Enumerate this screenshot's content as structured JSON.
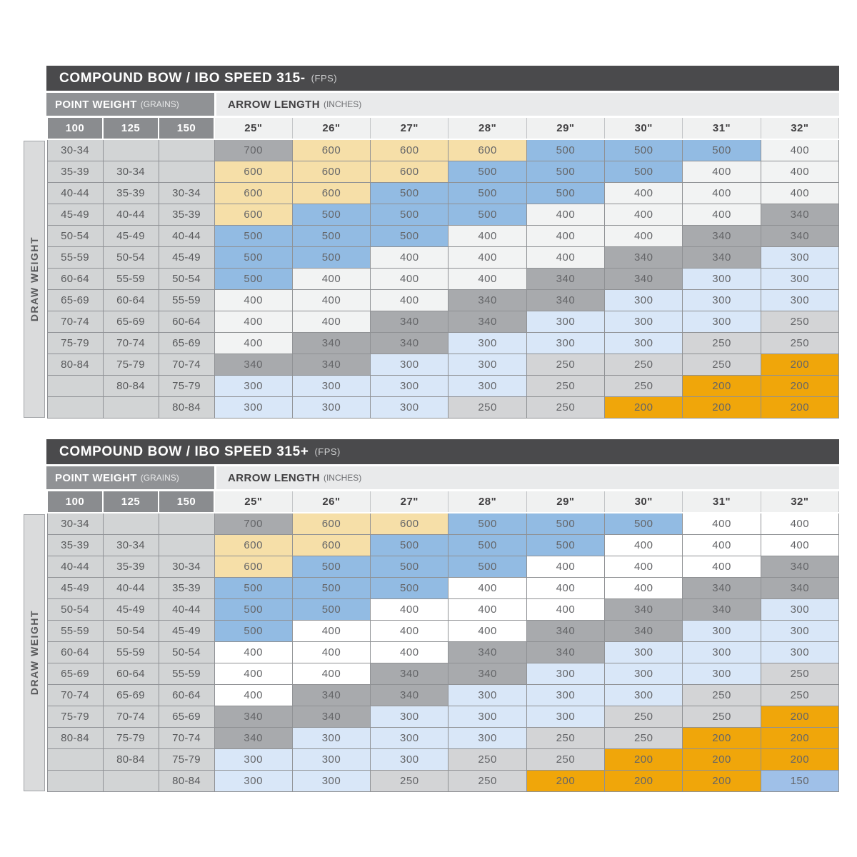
{
  "page_background": "#ffffff",
  "chart_data": [
    {
      "type": "table",
      "title": "COMPOUND BOW / IBO SPEED 315-",
      "units": "(FPS)",
      "col_group_left": {
        "label": "POINT WEIGHT",
        "unit": "(GRAINS)"
      },
      "col_group_right": {
        "label": "ARROW LENGTH",
        "unit": "(INCHES)"
      },
      "row_axis_label": "DRAW WEIGHT",
      "point_weight_grains": [
        "100",
        "125",
        "150"
      ],
      "arrow_length_inches": [
        "25\"",
        "26\"",
        "27\"",
        "28\"",
        "29\"",
        "30\"",
        "31\"",
        "32\""
      ],
      "value_colors": {
        "700": "#a8aaad",
        "600": "#f6dfa8",
        "500": "#92bbe3",
        "400": "#f2f3f3",
        "340": "#a8aaad",
        "300": "#d9e7f8",
        "250": "#d3d4d6",
        "200": "#f0a60a",
        "150": "#9fc0e8"
      },
      "rows": [
        {
          "draw_weight": [
            "30-34",
            "",
            ""
          ],
          "spine": [
            "700",
            "600",
            "600",
            "600",
            "500",
            "500",
            "500",
            "400"
          ]
        },
        {
          "draw_weight": [
            "35-39",
            "30-34",
            ""
          ],
          "spine": [
            "600",
            "600",
            "600",
            "500",
            "500",
            "500",
            "400",
            "400"
          ]
        },
        {
          "draw_weight": [
            "40-44",
            "35-39",
            "30-34"
          ],
          "spine": [
            "600",
            "600",
            "500",
            "500",
            "500",
            "400",
            "400",
            "400"
          ]
        },
        {
          "draw_weight": [
            "45-49",
            "40-44",
            "35-39"
          ],
          "spine": [
            "600",
            "500",
            "500",
            "500",
            "400",
            "400",
            "400",
            "340"
          ]
        },
        {
          "draw_weight": [
            "50-54",
            "45-49",
            "40-44"
          ],
          "spine": [
            "500",
            "500",
            "500",
            "400",
            "400",
            "400",
            "340",
            "340"
          ]
        },
        {
          "draw_weight": [
            "55-59",
            "50-54",
            "45-49"
          ],
          "spine": [
            "500",
            "500",
            "400",
            "400",
            "400",
            "340",
            "340",
            "300"
          ]
        },
        {
          "draw_weight": [
            "60-64",
            "55-59",
            "50-54"
          ],
          "spine": [
            "500",
            "400",
            "400",
            "400",
            "340",
            "340",
            "300",
            "300"
          ]
        },
        {
          "draw_weight": [
            "65-69",
            "60-64",
            "55-59"
          ],
          "spine": [
            "400",
            "400",
            "400",
            "340",
            "340",
            "300",
            "300",
            "300"
          ]
        },
        {
          "draw_weight": [
            "70-74",
            "65-69",
            "60-64"
          ],
          "spine": [
            "400",
            "400",
            "340",
            "340",
            "300",
            "300",
            "300",
            "250"
          ]
        },
        {
          "draw_weight": [
            "75-79",
            "70-74",
            "65-69"
          ],
          "spine": [
            "400",
            "340",
            "340",
            "300",
            "300",
            "300",
            "250",
            "250"
          ]
        },
        {
          "draw_weight": [
            "80-84",
            "75-79",
            "70-74"
          ],
          "spine": [
            "340",
            "340",
            "300",
            "300",
            "250",
            "250",
            "250",
            "200"
          ]
        },
        {
          "draw_weight": [
            "",
            "80-84",
            "75-79"
          ],
          "spine": [
            "300",
            "300",
            "300",
            "300",
            "250",
            "250",
            "200",
            "200"
          ]
        },
        {
          "draw_weight": [
            "",
            "",
            "80-84"
          ],
          "spine": [
            "300",
            "300",
            "300",
            "250",
            "250",
            "200",
            "200",
            "200"
          ]
        }
      ]
    },
    {
      "type": "table",
      "title": "COMPOUND BOW / IBO SPEED 315+",
      "units": "(FPS)",
      "col_group_left": {
        "label": "POINT WEIGHT",
        "unit": "(GRAINS)"
      },
      "col_group_right": {
        "label": "ARROW LENGTH",
        "unit": "(INCHES)"
      },
      "row_axis_label": "DRAW WEIGHT",
      "point_weight_grains": [
        "100",
        "125",
        "150"
      ],
      "arrow_length_inches": [
        "25\"",
        "26\"",
        "27\"",
        "28\"",
        "29\"",
        "30\"",
        "31\"",
        "32\""
      ],
      "value_colors": {
        "700": "#a8aaad",
        "600": "#f6dfa8",
        "500": "#92bbe3",
        "400": "#ffffff",
        "340": "#a8aaad",
        "300": "#d9e7f8",
        "250": "#d3d4d6",
        "200": "#f0a60a",
        "150": "#9fc0e8"
      },
      "rows": [
        {
          "draw_weight": [
            "30-34",
            "",
            ""
          ],
          "spine": [
            "700",
            "600",
            "600",
            "500",
            "500",
            "500",
            "400",
            "400"
          ]
        },
        {
          "draw_weight": [
            "35-39",
            "30-34",
            ""
          ],
          "spine": [
            "600",
            "600",
            "500",
            "500",
            "500",
            "400",
            "400",
            "400"
          ]
        },
        {
          "draw_weight": [
            "40-44",
            "35-39",
            "30-34"
          ],
          "spine": [
            "600",
            "500",
            "500",
            "500",
            "400",
            "400",
            "400",
            "340"
          ]
        },
        {
          "draw_weight": [
            "45-49",
            "40-44",
            "35-39"
          ],
          "spine": [
            "500",
            "500",
            "500",
            "400",
            "400",
            "400",
            "340",
            "340"
          ]
        },
        {
          "draw_weight": [
            "50-54",
            "45-49",
            "40-44"
          ],
          "spine": [
            "500",
            "500",
            "400",
            "400",
            "400",
            "340",
            "340",
            "300"
          ]
        },
        {
          "draw_weight": [
            "55-59",
            "50-54",
            "45-49"
          ],
          "spine": [
            "500",
            "400",
            "400",
            "400",
            "340",
            "340",
            "300",
            "300"
          ]
        },
        {
          "draw_weight": [
            "60-64",
            "55-59",
            "50-54"
          ],
          "spine": [
            "400",
            "400",
            "400",
            "340",
            "340",
            "300",
            "300",
            "300"
          ]
        },
        {
          "draw_weight": [
            "65-69",
            "60-64",
            "55-59"
          ],
          "spine": [
            "400",
            "400",
            "340",
            "340",
            "300",
            "300",
            "300",
            "250"
          ]
        },
        {
          "draw_weight": [
            "70-74",
            "65-69",
            "60-64"
          ],
          "spine": [
            "400",
            "340",
            "340",
            "300",
            "300",
            "300",
            "250",
            "250"
          ]
        },
        {
          "draw_weight": [
            "75-79",
            "70-74",
            "65-69"
          ],
          "spine": [
            "340",
            "340",
            "300",
            "300",
            "300",
            "250",
            "250",
            "200"
          ]
        },
        {
          "draw_weight": [
            "80-84",
            "75-79",
            "70-74"
          ],
          "spine": [
            "340",
            "300",
            "300",
            "300",
            "250",
            "250",
            "200",
            "200"
          ]
        },
        {
          "draw_weight": [
            "",
            "80-84",
            "75-79"
          ],
          "spine": [
            "300",
            "300",
            "300",
            "250",
            "250",
            "200",
            "200",
            "200"
          ]
        },
        {
          "draw_weight": [
            "",
            "",
            "80-84"
          ],
          "spine": [
            "300",
            "300",
            "250",
            "250",
            "200",
            "200",
            "200",
            "150"
          ]
        }
      ]
    }
  ]
}
